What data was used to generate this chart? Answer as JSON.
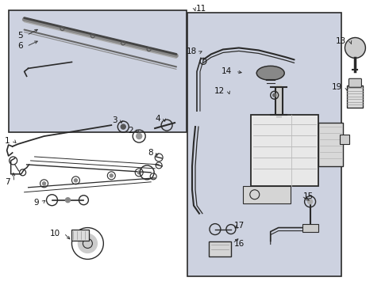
{
  "bg_color": "#ffffff",
  "diagram_bg": "#cdd2e0",
  "line_color": "#2a2a2a",
  "figsize": [
    4.9,
    3.6
  ],
  "dpi": 100,
  "label_fontsize": 7.5,
  "label_color": "#111111"
}
